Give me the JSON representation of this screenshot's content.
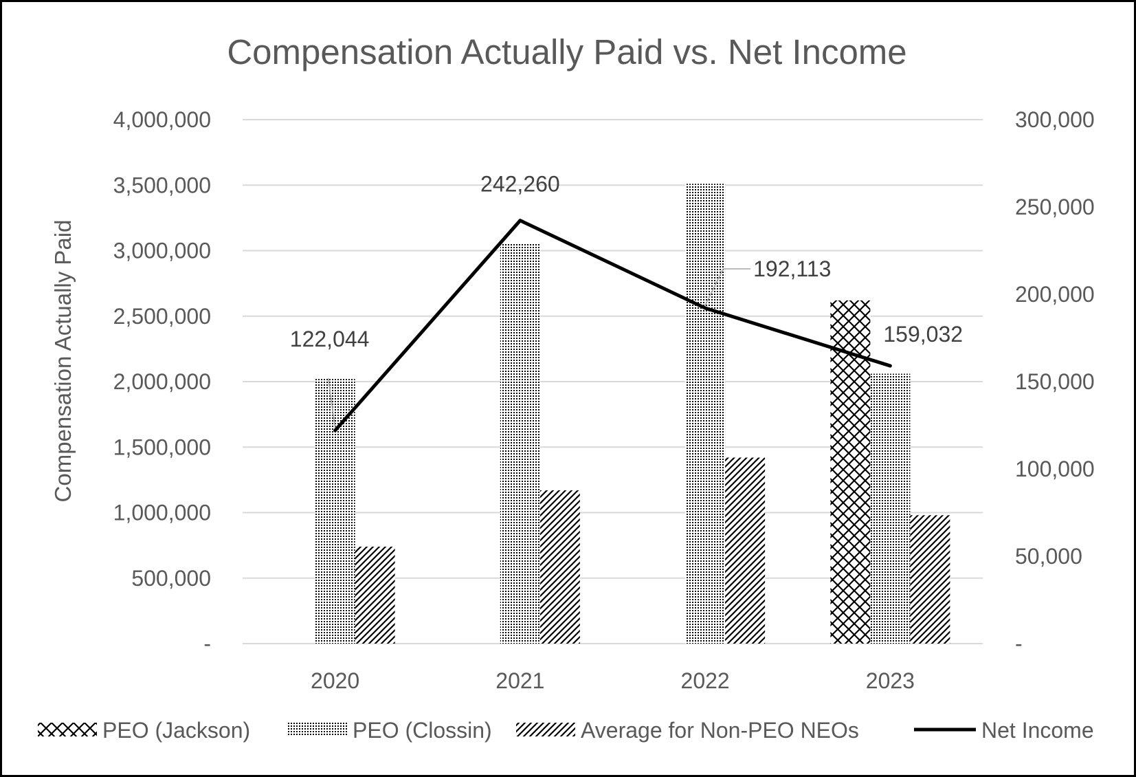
{
  "chart_data": {
    "type": "bar",
    "title": "Compensation Actually Paid vs. Net Income",
    "xlabel": "",
    "ylabel": "Compensation Actually Paid",
    "y2label": "",
    "categories": [
      "2020",
      "2021",
      "2022",
      "2023"
    ],
    "ylim": [
      0,
      4000000
    ],
    "y2lim": [
      0,
      300000
    ],
    "yticks": [
      "-",
      "500,000",
      "1,000,000",
      "1,500,000",
      "2,000,000",
      "2,500,000",
      "3,000,000",
      "3,500,000",
      "4,000,000"
    ],
    "y2ticks": [
      "-",
      "50,000",
      "100,000",
      "150,000",
      "200,000",
      "250,000",
      "300,000"
    ],
    "grid": true,
    "legend_position": "bottom",
    "series": [
      {
        "name": "PEO (Jackson)",
        "type": "bar",
        "axis": "left",
        "pattern": "crosshatch",
        "values": [
          null,
          null,
          null,
          2620000
        ]
      },
      {
        "name": "PEO (Clossin)",
        "type": "bar",
        "axis": "left",
        "pattern": "dots",
        "values": [
          2020000,
          3060000,
          3510000,
          2060000
        ]
      },
      {
        "name": "Average for Non-PEO NEOs",
        "type": "bar",
        "axis": "left",
        "pattern": "diagonal",
        "values": [
          740000,
          1170000,
          1420000,
          980000
        ]
      },
      {
        "name": "Net Income",
        "type": "line",
        "axis": "right",
        "values": [
          122044,
          242260,
          192113,
          159032
        ]
      }
    ],
    "data_labels": [
      "122,044",
      "242,260",
      "192,113",
      "159,032"
    ],
    "colors": {
      "text": "#595959",
      "label": "#404040",
      "grid": "#d9d9d9",
      "line": "#000000",
      "pattern": "#000000"
    }
  }
}
